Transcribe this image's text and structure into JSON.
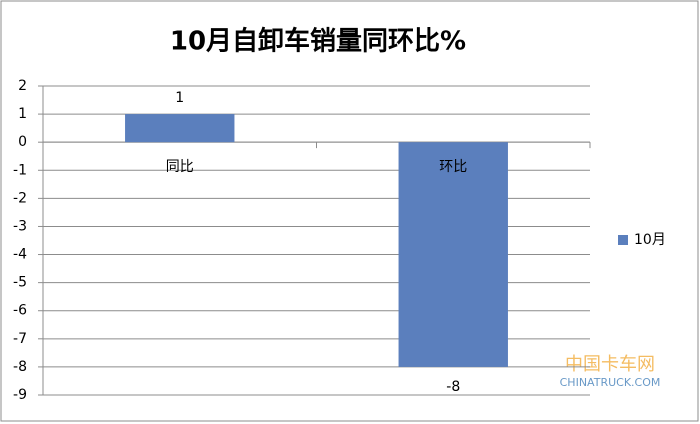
{
  "chart_data": {
    "type": "bar",
    "title": "10月自卸车销量同环比%",
    "categories": [
      "同比",
      "环比"
    ],
    "series": [
      {
        "name": "10月",
        "color": "#5b7fbd",
        "values": [
          1,
          -8
        ]
      }
    ],
    "ylim": [
      -9,
      2
    ],
    "yticks": [
      -9,
      -8,
      -7,
      -6,
      -5,
      -4,
      -3,
      -2,
      -1,
      0,
      1,
      2
    ],
    "grid": true,
    "legend": "right",
    "watermark": [
      "中国卡车网",
      "CHINATRUCK.COM"
    ]
  }
}
